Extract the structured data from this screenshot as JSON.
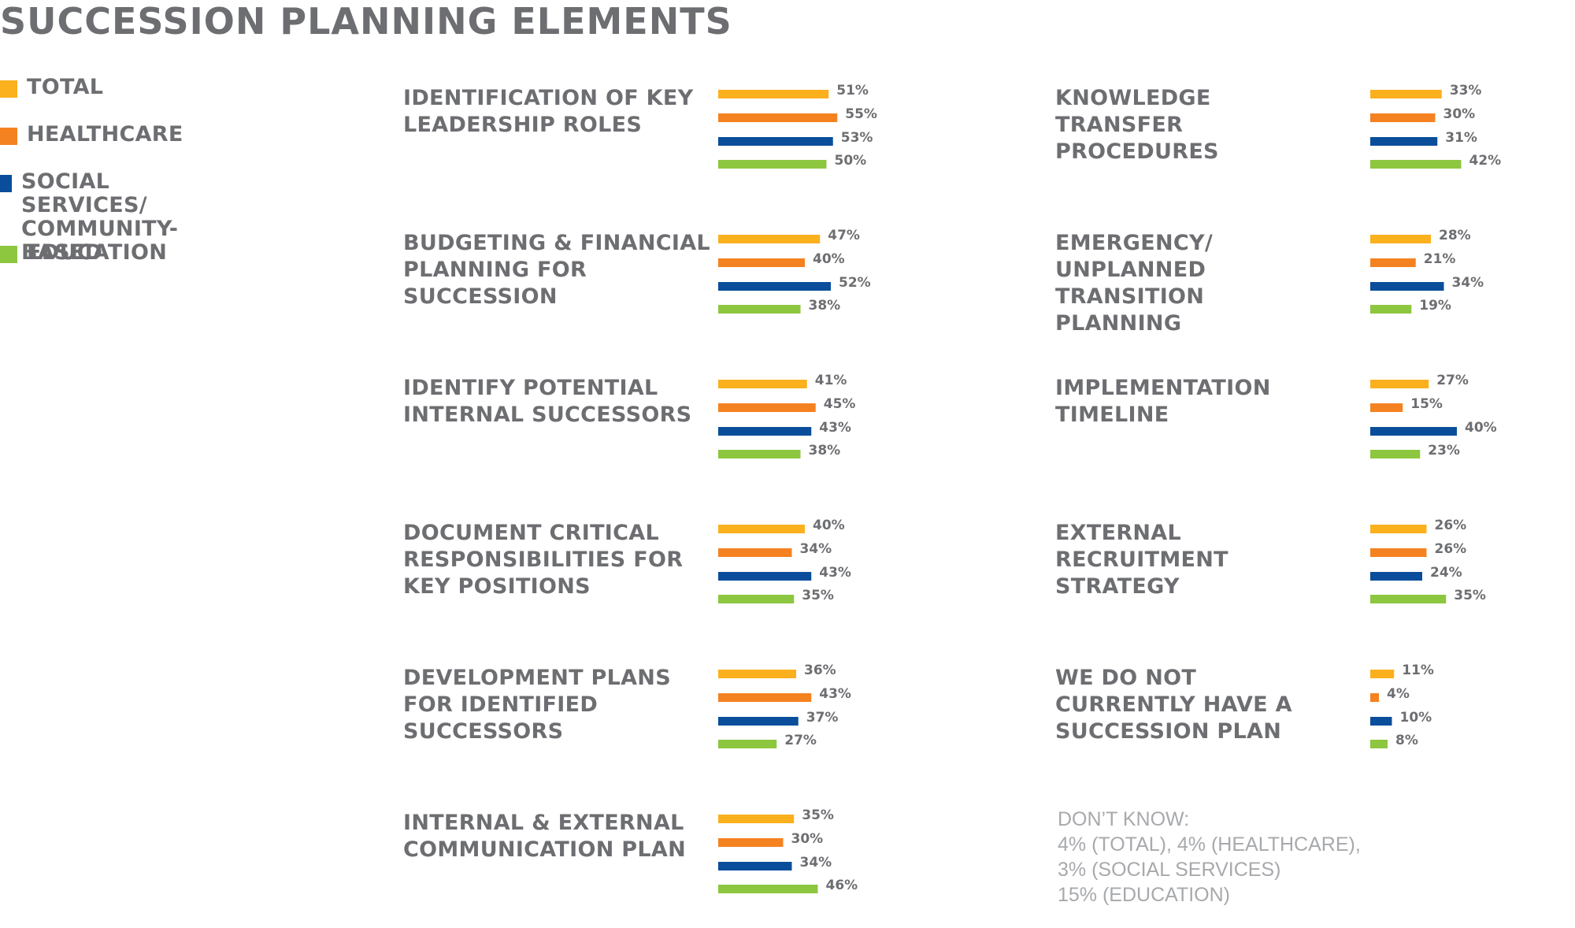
{
  "title": "SUCCESSION PLANNING ELEMENTS",
  "colors": {
    "total": "#fbb01e",
    "healthcare": "#f58220",
    "social_services": "#0a4e9b",
    "education": "#8dc63f"
  },
  "legend": [
    {
      "label": "TOTAL",
      "color": "#fbb01e"
    },
    {
      "label": "HEALTHCARE",
      "color": "#f58220"
    },
    {
      "label": "SOCIAL SERVICES/\nCOMMUNITY-BASED",
      "color": "#0a4e9b"
    },
    {
      "label": "EDUCATION",
      "color": "#8dc63f"
    }
  ],
  "note": "DON’T KNOW:\n4% (TOTAL), 4% (HEALTHCARE),\n3% (SOCIAL SERVICES)\n15% (EDUCATION)",
  "chart_data": {
    "type": "bar",
    "orientation": "horizontal",
    "series_names": [
      "TOTAL",
      "HEALTHCARE",
      "SOCIAL SERVICES/ COMMUNITY-BASED",
      "EDUCATION"
    ],
    "unit": "%",
    "groups": [
      {
        "label": "IDENTIFICATION OF KEY\nLEADERSHIP ROLES",
        "values": [
          51,
          55,
          53,
          50
        ]
      },
      {
        "label": "BUDGETING & FINANCIAL\nPLANNING FOR\nSUCCESSION",
        "values": [
          47,
          40,
          52,
          38
        ]
      },
      {
        "label": "IDENTIFY POTENTIAL\nINTERNAL SUCCESSORS",
        "values": [
          41,
          45,
          43,
          38
        ]
      },
      {
        "label": "DOCUMENT CRITICAL\nRESPONSIBILITIES FOR\n KEY POSITIONS",
        "values": [
          40,
          34,
          43,
          35
        ]
      },
      {
        "label": "DEVELOPMENT PLANS\nFOR IDENTIFIED\nSUCCESSORS",
        "values": [
          36,
          43,
          37,
          27
        ]
      },
      {
        "label": "INTERNAL & EXTERNAL\nCOMMUNICATION PLAN",
        "values": [
          35,
          30,
          34,
          46
        ]
      },
      {
        "label": "KNOWLEDGE\nTRANSFER\nPROCEDURES",
        "values": [
          33,
          30,
          31,
          42
        ]
      },
      {
        "label": "EMERGENCY/\nUNPLANNED\nTRANSITION\nPLANNING",
        "values": [
          28,
          21,
          34,
          19
        ]
      },
      {
        "label": "IMPLEMENTATION\nTIMELINE",
        "values": [
          27,
          15,
          40,
          23
        ]
      },
      {
        "label": "EXTERNAL\nRECRUITMENT\nSTRATEGY",
        "values": [
          26,
          26,
          24,
          35
        ]
      },
      {
        "label": "WE DO NOT\nCURRENTLY HAVE A\nSUCCESSION PLAN",
        "values": [
          11,
          4,
          10,
          8
        ]
      }
    ]
  }
}
